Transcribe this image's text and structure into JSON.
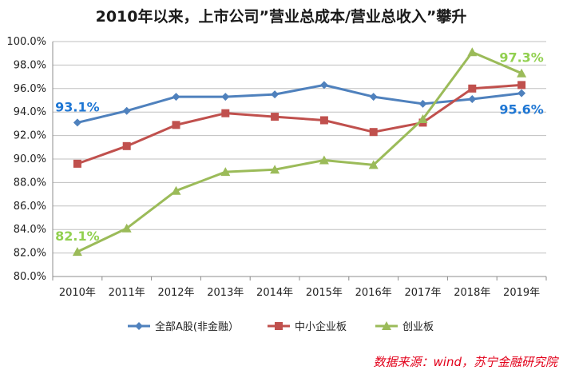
{
  "chart_data": {
    "type": "line",
    "title": "2010年以来，上市公司”营业总成本/营业总收入”攀升",
    "source": "数据来源：wind，苏宁金融研究院",
    "categories": [
      "2010年",
      "2011年",
      "2012年",
      "2013年",
      "2014年",
      "2015年",
      "2016年",
      "2017年",
      "2018年",
      "2019年"
    ],
    "ylim": [
      80.0,
      100.0
    ],
    "yticks": [
      "80.0%",
      "82.0%",
      "84.0%",
      "86.0%",
      "88.0%",
      "90.0%",
      "92.0%",
      "94.0%",
      "96.0%",
      "98.0%",
      "100.0%"
    ],
    "grid": true,
    "legend_position": "bottom",
    "series": [
      {
        "name": "全部A股(非金融）",
        "color": "#4f81bd",
        "marker": "diamond",
        "values": [
          93.1,
          94.1,
          95.3,
          95.3,
          95.5,
          96.3,
          95.3,
          94.7,
          95.1,
          95.6
        ]
      },
      {
        "name": "中小企业板",
        "color": "#c0504d",
        "marker": "square",
        "values": [
          89.6,
          91.1,
          92.9,
          93.9,
          93.6,
          93.3,
          92.3,
          93.1,
          96.0,
          96.3
        ]
      },
      {
        "name": "创业板",
        "color": "#9bbb59",
        "marker": "triangle",
        "values": [
          82.1,
          84.1,
          87.3,
          88.9,
          89.1,
          89.9,
          89.5,
          93.4,
          99.1,
          97.3
        ]
      }
    ],
    "annotations": [
      {
        "text": "93.1%",
        "series": 0,
        "index": 0,
        "color": "#1f77d4"
      },
      {
        "text": "95.6%",
        "series": 0,
        "index": 9,
        "color": "#1f77d4"
      },
      {
        "text": "82.1%",
        "series": 2,
        "index": 0,
        "color": "#92d050"
      },
      {
        "text": "97.3%",
        "series": 2,
        "index": 9,
        "color": "#92d050"
      }
    ]
  }
}
